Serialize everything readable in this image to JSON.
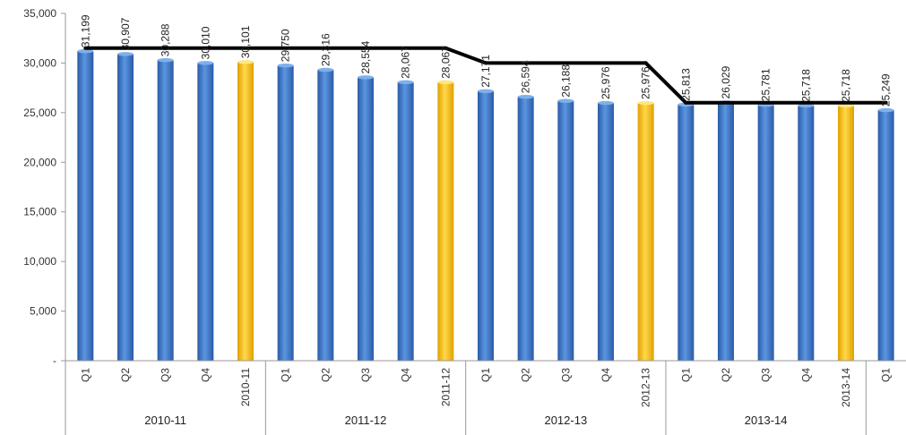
{
  "chart_data": {
    "type": "bar",
    "ylim": [
      0,
      35000
    ],
    "y_ticks": [
      "-",
      "5,000",
      "10,000",
      "15,000",
      "20,000",
      "25,000",
      "30,000",
      "35,000"
    ],
    "y_tick_values": [
      0,
      5000,
      10000,
      15000,
      20000,
      25000,
      30000,
      35000
    ],
    "grid": false,
    "legend": "none",
    "categories": [
      "Q1",
      "Q2",
      "Q3",
      "Q4",
      "2010-11",
      "Q1",
      "Q2",
      "Q3",
      "Q4",
      "2011-12",
      "Q1",
      "Q2",
      "Q3",
      "Q4",
      "2012-13",
      "Q1",
      "Q2",
      "Q3",
      "Q4",
      "2013-14",
      "Q1"
    ],
    "groups": [
      {
        "label": "2010-11",
        "count": 5
      },
      {
        "label": "2011-12",
        "count": 5
      },
      {
        "label": "2012-13",
        "count": 5
      },
      {
        "label": "2013-14",
        "count": 5
      },
      {
        "label": "",
        "count": 1
      }
    ],
    "values": [
      31199,
      30907,
      30288,
      30010,
      30101,
      29750,
      29316,
      28554,
      28067,
      28067,
      27171,
      26594,
      26188,
      25976,
      25976,
      25813,
      26029,
      25781,
      25718,
      25718,
      25249
    ],
    "value_labels": [
      "31,199",
      "30,907",
      "30,288",
      "30,010",
      "30,101",
      "29,750",
      "29,316",
      "28,554",
      "28,067",
      "28,067",
      "27,171",
      "26,594",
      "26,188",
      "25,976",
      "25,976",
      "25,813",
      "26,029",
      "25,781",
      "25,718",
      "25,718",
      "25,249"
    ],
    "highlight": [
      false,
      false,
      false,
      false,
      true,
      false,
      false,
      false,
      false,
      true,
      false,
      false,
      false,
      false,
      true,
      false,
      false,
      false,
      false,
      true,
      false
    ],
    "step_line": [
      {
        "from": 0,
        "to": 9,
        "value": 31500
      },
      {
        "from": 10,
        "to": 14,
        "value": 30000
      },
      {
        "from": 15,
        "to": 20,
        "value": 26000
      }
    ],
    "colors": {
      "bar": "#3b73c4",
      "highlight": "#f5b800",
      "line": "#000000",
      "axis": "#9a9a9a"
    }
  }
}
